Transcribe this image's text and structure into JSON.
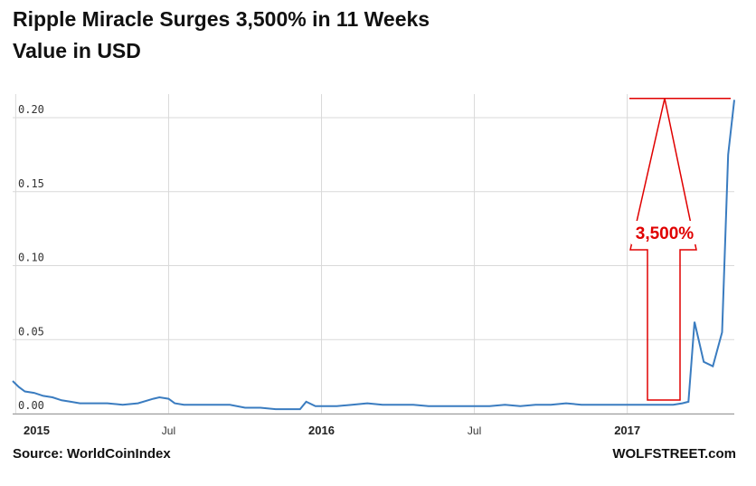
{
  "header": {
    "title": "Ripple Miracle Surges 3,500% in 11 Weeks",
    "subtitle": "Value in USD"
  },
  "footer": {
    "source": "Source: WorldCoinIndex",
    "brand": "WOLFSTREET.com"
  },
  "annotation": {
    "label": "3,500%",
    "color": "#e00000"
  },
  "colors": {
    "line": "#3a7cc0",
    "grid": "#d9d9d9",
    "annotation": "#e00000"
  },
  "chart_data": {
    "type": "line",
    "title": "Ripple Miracle Surges 3,500% in 11 Weeks",
    "ylabel": "Value in USD",
    "xlabel": "",
    "ylim": [
      0,
      0.2
    ],
    "yticks": [
      "0.00",
      "0.05",
      "0.10",
      "0.15",
      "0.20"
    ],
    "xticks": [
      {
        "label": "2015",
        "x": 2015.0,
        "bold": true
      },
      {
        "label": "Jul",
        "x": 2015.5,
        "bold": false
      },
      {
        "label": "2016",
        "x": 2016.0,
        "bold": true
      },
      {
        "label": "Jul",
        "x": 2016.5,
        "bold": false
      },
      {
        "label": "2017",
        "x": 2017.0,
        "bold": true
      }
    ],
    "xlim": [
      2014.99,
      2017.35
    ],
    "grid": true,
    "series": [
      {
        "x": [
          2014.99,
          2015.01,
          2015.03,
          2015.06,
          2015.09,
          2015.12,
          2015.15,
          2015.18,
          2015.21,
          2015.25,
          2015.3,
          2015.35,
          2015.4,
          2015.45,
          2015.47,
          2015.5,
          2015.52,
          2015.55,
          2015.6,
          2015.65,
          2015.7,
          2015.75,
          2015.8,
          2015.85,
          2015.9,
          2015.93,
          2015.95,
          2015.98,
          2016.0,
          2016.05,
          2016.1,
          2016.15,
          2016.2,
          2016.25,
          2016.3,
          2016.35,
          2016.4,
          2016.45,
          2016.5,
          2016.55,
          2016.6,
          2016.65,
          2016.7,
          2016.75,
          2016.8,
          2016.85,
          2016.9,
          2016.95,
          2017.0,
          2017.05,
          2017.1,
          2017.15,
          2017.18,
          2017.2,
          2017.22,
          2017.25,
          2017.28,
          2017.31,
          2017.33,
          2017.35
        ],
        "y": [
          0.022,
          0.018,
          0.015,
          0.014,
          0.012,
          0.011,
          0.009,
          0.008,
          0.007,
          0.007,
          0.007,
          0.006,
          0.007,
          0.01,
          0.011,
          0.01,
          0.007,
          0.006,
          0.006,
          0.006,
          0.006,
          0.004,
          0.004,
          0.003,
          0.003,
          0.003,
          0.008,
          0.005,
          0.005,
          0.005,
          0.006,
          0.007,
          0.006,
          0.006,
          0.006,
          0.005,
          0.005,
          0.005,
          0.005,
          0.005,
          0.006,
          0.005,
          0.006,
          0.006,
          0.007,
          0.006,
          0.006,
          0.006,
          0.006,
          0.006,
          0.006,
          0.006,
          0.007,
          0.008,
          0.062,
          0.035,
          0.032,
          0.055,
          0.175,
          0.212
        ]
      }
    ]
  }
}
